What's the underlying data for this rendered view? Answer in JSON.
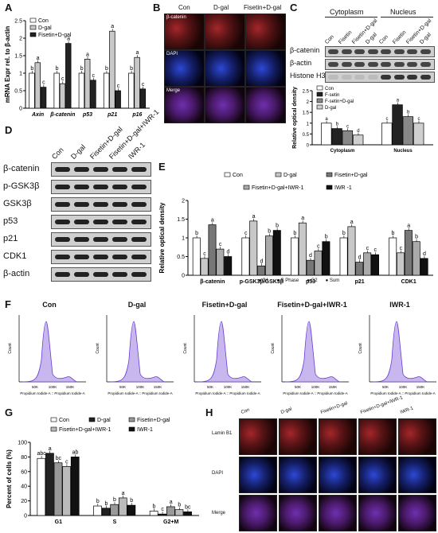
{
  "panels": {
    "A": "A",
    "B": "B",
    "C": "C",
    "D": "D",
    "E": "E",
    "F": "F",
    "G": "G",
    "H": "H"
  },
  "panelB": {
    "columns": [
      "Con",
      "D-gal",
      "Fisetin+D-gal"
    ],
    "rows": [
      "β-catenin",
      "DAPI",
      "Merge"
    ]
  },
  "panelC": {
    "groups": [
      "Cytoplasm",
      "Nucleus"
    ],
    "lanes": [
      "Con",
      "Fisetin",
      "Fisetin+D-gal",
      "D-gal",
      "Con",
      "Fisetin",
      "Fisetin+D-gal",
      "D-gal"
    ],
    "rows": [
      "β-catenin",
      "β-actin",
      "Histone H3"
    ]
  },
  "panelD": {
    "lanes": [
      "Con",
      "D-gal",
      "Fisetin+D-gal",
      "Fisetin+D-gal+IWR-1",
      "IWR-1"
    ],
    "rows": [
      "β-catenin",
      "p-GSK3β",
      "GSK3β",
      "p53",
      "p21",
      "CDK1",
      "β-actin"
    ]
  },
  "panelF": {
    "titles": [
      "Con",
      "D-gal",
      "Fisetin+D-gal",
      "Fisetin+D-gal+IWR-1",
      "IWR-1"
    ],
    "legend": [
      "G1",
      "S Phase",
      "G2",
      "Sum"
    ],
    "xlabel": "Propidium Iodide-A :: Propidium Iodide-A",
    "ylabel": "Count",
    "ticks": [
      "50K",
      "100K",
      "150K"
    ]
  },
  "panelH": {
    "columns": [
      "Con",
      "D-gal",
      "Fisetin+D-gal",
      "Fisetin+D-gal+IWR-1",
      "IWR-1"
    ],
    "rows": [
      "Lamin B1",
      "DAPI",
      "Merge"
    ]
  },
  "chart_data": [
    {
      "id": "A",
      "type": "bar",
      "ylabel": "mRNA Expr rel. to β-actin",
      "ylim": [
        0,
        2.5
      ],
      "yticks": [
        0,
        0.5,
        1.0,
        1.5,
        2.0,
        2.5
      ],
      "categories": [
        "Axin",
        "β-catenin",
        "p53",
        "p21",
        "p16"
      ],
      "legend": "top-left",
      "series": [
        {
          "name": "Con",
          "color": "#ffffff",
          "values": [
            1.0,
            1.0,
            1.0,
            1.0,
            1.0
          ],
          "letters": [
            "b",
            "b",
            "b",
            "b",
            "b"
          ]
        },
        {
          "name": "D-gal",
          "color": "#c8c8c8",
          "values": [
            1.3,
            0.7,
            1.4,
            2.2,
            1.45
          ],
          "letters": [
            "a",
            "c",
            "a",
            "a",
            "a"
          ]
        },
        {
          "name": "Fisetin+D-gal",
          "color": "#222222",
          "values": [
            0.6,
            1.85,
            0.8,
            0.5,
            0.55
          ],
          "letters": [
            "c",
            "a",
            "c",
            "c",
            "c"
          ]
        }
      ]
    },
    {
      "id": "C",
      "type": "bar",
      "ylabel": "Relative optical density",
      "ylim": [
        0,
        2.5
      ],
      "yticks": [
        0.0,
        0.5,
        1.0,
        1.5,
        2.0,
        2.5
      ],
      "categories": [
        "Cytoplasm",
        "Nucleus"
      ],
      "legend": "top-left",
      "series": [
        {
          "name": "Con",
          "color": "#ffffff",
          "values": [
            1.0,
            1.0
          ],
          "letters": [
            "a",
            "c"
          ]
        },
        {
          "name": "F-setin",
          "color": "#222222",
          "values": [
            0.75,
            1.85
          ],
          "letters": [
            "b",
            "a"
          ]
        },
        {
          "name": "F-setin+D-gal",
          "color": "#888888",
          "values": [
            0.65,
            1.3
          ],
          "letters": [
            "c",
            "b"
          ]
        },
        {
          "name": "D-gal",
          "color": "#cfcfcf",
          "values": [
            0.45,
            1.0
          ],
          "letters": [
            "d",
            "c"
          ]
        }
      ]
    },
    {
      "id": "E",
      "type": "bar",
      "ylabel": "Relative optical density",
      "ylim": [
        0,
        2.0
      ],
      "yticks": [
        0.0,
        0.5,
        1.0,
        1.5,
        2.0
      ],
      "categories": [
        "β-catenin",
        "p-GSK3β/GSK3β",
        "p53",
        "p21",
        "CDK1"
      ],
      "legend": "top",
      "series": [
        {
          "name": "Con",
          "color": "#ffffff",
          "values": [
            1.0,
            1.0,
            1.0,
            1.0,
            1.0
          ],
          "letters": [
            "b",
            "c",
            "b",
            "b",
            "b"
          ]
        },
        {
          "name": "D-gal",
          "color": "#c8c8c8",
          "values": [
            0.45,
            1.45,
            1.4,
            1.3,
            0.6
          ],
          "letters": [
            "c",
            "a",
            "a",
            "a",
            "c"
          ]
        },
        {
          "name": "Fisetin+D-gal",
          "color": "#777777",
          "values": [
            1.35,
            0.25,
            0.4,
            0.35,
            1.2
          ],
          "letters": [
            "a",
            "d",
            "d",
            "d",
            "a"
          ]
        },
        {
          "name": "Fisetin+D-gal+IWR-1",
          "color": "#aaaaaa",
          "values": [
            0.7,
            1.05,
            0.65,
            0.6,
            0.9
          ],
          "letters": [
            "c",
            "b",
            "c",
            "c",
            "b"
          ]
        },
        {
          "name": "IWR -1",
          "color": "#111111",
          "values": [
            0.5,
            1.2,
            0.9,
            0.55,
            0.45
          ],
          "letters": [
            "d",
            "b",
            "b",
            "c",
            "d"
          ]
        }
      ]
    },
    {
      "id": "G",
      "type": "bar",
      "ylabel": "Percent of cells (%)",
      "ylim": [
        0,
        100
      ],
      "yticks": [
        0,
        20,
        40,
        60,
        80,
        100
      ],
      "categories": [
        "G1",
        "S",
        "G2+M"
      ],
      "legend": "top",
      "series": [
        {
          "name": "Con",
          "color": "#ffffff",
          "values": [
            78,
            13,
            6
          ],
          "letters": [
            "abc",
            "b",
            "b"
          ]
        },
        {
          "name": "D-gal",
          "color": "#222222",
          "values": [
            85,
            10,
            2
          ],
          "letters": [
            "a",
            "b",
            "c"
          ]
        },
        {
          "name": "Fisetin+D-gal",
          "color": "#999999",
          "values": [
            72,
            15,
            12
          ],
          "letters": [
            "bc",
            "b",
            "a"
          ]
        },
        {
          "name": "Fisetin+D-gal+IWR-1",
          "color": "#bbbbbb",
          "values": [
            67,
            24,
            8
          ],
          "letters": [
            "c",
            "a",
            "b"
          ]
        },
        {
          "name": "IWR-1",
          "color": "#111111",
          "values": [
            80,
            14,
            5
          ],
          "letters": [
            "ab",
            "b",
            "bc"
          ]
        }
      ]
    }
  ]
}
